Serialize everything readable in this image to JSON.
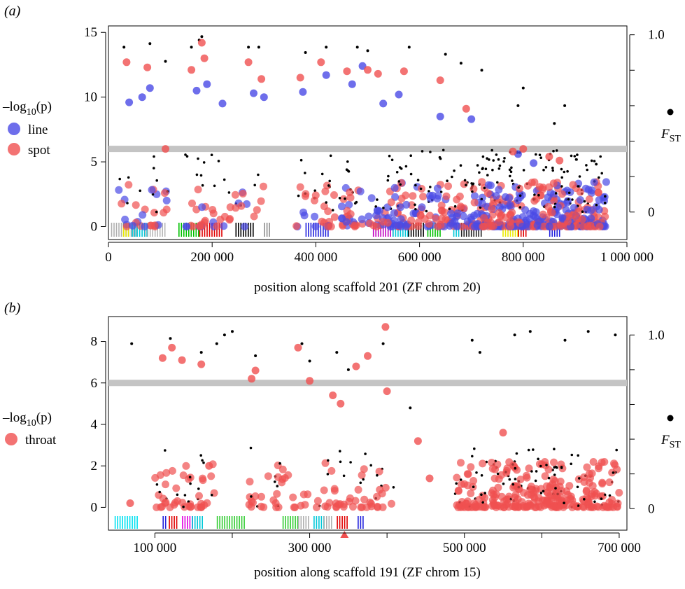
{
  "chart_data": [
    {
      "panel_label": "(a)",
      "type": "scatter",
      "xlabel": "position along scaffold 201 (ZF chrom 20)",
      "ylabel_left": "–log10(p)",
      "ylabel_right": "FST",
      "xlim": [
        0,
        1000000
      ],
      "ylim": [
        -1.0,
        15.5
      ],
      "xticks": [
        0,
        200000,
        400000,
        600000,
        800000,
        1000000
      ],
      "xtick_labels": [
        "0",
        "200 000",
        "400 000",
        "600 000",
        "800 000",
        "1 000 000"
      ],
      "yticks": [
        0,
        5,
        10,
        15
      ],
      "ytick_labels": [
        "0",
        "5",
        "10",
        "15"
      ],
      "right_ticks": [
        0,
        0.2,
        0.4,
        0.6,
        0.8,
        1.0
      ],
      "right_tick_labels": [
        "0",
        "",
        "",
        "",
        "",
        "1.0"
      ],
      "right_ylim": [
        -0.155,
        1.05
      ],
      "threshold": 6,
      "legend": {
        "title_main": "–log",
        "title_sub": "10",
        "title_tail": "(p)",
        "entries": [
          {
            "label": "line",
            "color": "#4a4ae6"
          },
          {
            "label": "spot",
            "color": "#f05050"
          }
        ],
        "fst_label_main": "F",
        "fst_label_sub": "ST"
      },
      "series": [
        {
          "name": "line",
          "color": "#4a4ae6",
          "x": [
            40000,
            65000,
            80000,
            170000,
            190000,
            220000,
            280000,
            300000,
            375000,
            420000,
            470000,
            490000,
            530000,
            560000,
            640000,
            700000,
            790000,
            820000
          ],
          "y": [
            9.6,
            10.0,
            10.7,
            10.5,
            11.0,
            9.5,
            10.3,
            10.0,
            10.4,
            11.7,
            11.0,
            12.4,
            9.5,
            10.2,
            8.5,
            8.3,
            5.6,
            4.9
          ]
        },
        {
          "name": "spot",
          "color": "#f05050",
          "x": [
            35000,
            75000,
            110000,
            160000,
            180000,
            185000,
            270000,
            295000,
            370000,
            410000,
            460000,
            500000,
            520000,
            570000,
            640000,
            690000,
            780000,
            800000,
            850000,
            870000
          ],
          "y": [
            12.7,
            12.3,
            6.0,
            12.1,
            14.2,
            13.0,
            12.7,
            11.4,
            11.5,
            12.7,
            12.0,
            12.1,
            11.8,
            12.0,
            11.3,
            9.1,
            5.8,
            6.0,
            5.4,
            5.1
          ]
        },
        {
          "name": "FST",
          "color": "#000000",
          "x": [
            30000,
            80000,
            110000,
            160000,
            175000,
            180000,
            270000,
            290000,
            380000,
            420000,
            480000,
            500000,
            580000,
            650000,
            680000,
            720000,
            790000,
            800000,
            860000,
            880000
          ],
          "y": [
            0.93,
            0.95,
            0.85,
            0.93,
            0.97,
            0.99,
            0.93,
            0.93,
            0.9,
            0.93,
            0.93,
            0.91,
            0.93,
            0.89,
            0.84,
            0.8,
            0.6,
            0.7,
            0.5,
            0.6
          ]
        }
      ],
      "gene_bands": [
        {
          "from": 5000,
          "to": 55000,
          "color": "#b0b0b0"
        },
        {
          "from": 28000,
          "to": 40000,
          "color": "#eaea00"
        },
        {
          "from": 45000,
          "to": 75000,
          "color": "#00c8d8"
        },
        {
          "from": 70000,
          "to": 110000,
          "color": "#b8b8b8"
        },
        {
          "from": 135000,
          "to": 175000,
          "color": "#00c000"
        },
        {
          "from": 175000,
          "to": 220000,
          "color": "#e00000"
        },
        {
          "from": 245000,
          "to": 280000,
          "color": "#000000"
        },
        {
          "from": 300000,
          "to": 312000,
          "color": "#909090"
        },
        {
          "from": 380000,
          "to": 425000,
          "color": "#2222dd"
        },
        {
          "from": 510000,
          "to": 548000,
          "color": "#c000c0"
        },
        {
          "from": 548000,
          "to": 578000,
          "color": "#00c8d8"
        },
        {
          "from": 578000,
          "to": 610000,
          "color": "#000000"
        },
        {
          "from": 615000,
          "to": 640000,
          "color": "#00c000"
        },
        {
          "from": 665000,
          "to": 675000,
          "color": "#00c8d8"
        },
        {
          "from": 680000,
          "to": 720000,
          "color": "#222222"
        },
        {
          "from": 760000,
          "to": 790000,
          "color": "#eaea00"
        },
        {
          "from": 790000,
          "to": 805000,
          "color": "#e00000"
        },
        {
          "from": 850000,
          "to": 870000,
          "color": "#2222dd"
        }
      ]
    },
    {
      "panel_label": "(b)",
      "type": "scatter",
      "xlabel": "position along scaffold 191 (ZF chrom 15)",
      "ylabel_left": "–log10(p)",
      "ylabel_right": "FST",
      "xlim": [
        40000,
        710000
      ],
      "ylim": [
        -1.1,
        9.2
      ],
      "xticks": [
        100000,
        200000,
        300000,
        400000,
        500000,
        600000,
        700000
      ],
      "xtick_labels": [
        "100 000",
        "",
        "300 000",
        "",
        "500 000",
        "",
        "700 000"
      ],
      "yticks": [
        0,
        2,
        4,
        6,
        8
      ],
      "ytick_labels": [
        "0",
        "2",
        "4",
        "6",
        "8"
      ],
      "right_ticks": [
        0,
        0.2,
        0.4,
        0.6,
        0.8,
        1.0
      ],
      "right_tick_labels": [
        "0",
        "",
        "",
        "",
        "",
        "1.0"
      ],
      "right_ylim": [
        -0.124,
        1.106
      ],
      "threshold": 6,
      "marker_x": 345000,
      "legend": {
        "title_main": "–log",
        "title_sub": "10",
        "title_tail": "(p)",
        "entries": [
          {
            "label": "throat",
            "color": "#f05050"
          }
        ],
        "fst_label_main": "F",
        "fst_label_sub": "ST"
      },
      "series": [
        {
          "name": "throat",
          "color": "#f05050",
          "x": [
            68000,
            110000,
            122000,
            135000,
            160000,
            170000,
            225000,
            230000,
            285000,
            300000,
            330000,
            340000,
            360000,
            375000,
            398000,
            400000,
            440000,
            455000,
            550000
          ],
          "y": [
            0.2,
            7.2,
            7.7,
            7.1,
            6.9,
            2.0,
            6.2,
            6.6,
            7.7,
            6.1,
            5.4,
            5.0,
            6.8,
            7.3,
            8.7,
            5.6,
            3.2,
            1.4,
            3.6
          ]
        },
        {
          "name": "FST",
          "color": "#000000",
          "x": [
            70000,
            120000,
            160000,
            180000,
            190000,
            200000,
            230000,
            290000,
            300000,
            335000,
            350000,
            395000,
            430000,
            510000,
            520000,
            565000,
            585000,
            630000,
            660000,
            695000
          ],
          "y": [
            0.95,
            0.98,
            0.9,
            0.95,
            1.0,
            1.02,
            0.88,
            0.95,
            0.85,
            0.9,
            0.8,
            0.95,
            0.58,
            0.97,
            0.9,
            1.0,
            1.02,
            0.97,
            1.02,
            1.0
          ]
        }
      ],
      "gene_bands": [
        {
          "from": 48000,
          "to": 78000,
          "color": "#00e0f0"
        },
        {
          "from": 110000,
          "to": 116000,
          "color": "#2222dd"
        },
        {
          "from": 118000,
          "to": 130000,
          "color": "#e00000"
        },
        {
          "from": 135000,
          "to": 148000,
          "color": "#e000e0"
        },
        {
          "from": 148000,
          "to": 162000,
          "color": "#00c8d8"
        },
        {
          "from": 180000,
          "to": 215000,
          "color": "#33cc33"
        },
        {
          "from": 265000,
          "to": 285000,
          "color": "#33cc33"
        },
        {
          "from": 285000,
          "to": 300000,
          "color": "#b0b0b0"
        },
        {
          "from": 305000,
          "to": 318000,
          "color": "#00c8d8"
        },
        {
          "from": 318000,
          "to": 330000,
          "color": "#b0b0b0"
        },
        {
          "from": 335000,
          "to": 350000,
          "color": "#e00000"
        },
        {
          "from": 362000,
          "to": 370000,
          "color": "#2222dd"
        }
      ]
    }
  ]
}
